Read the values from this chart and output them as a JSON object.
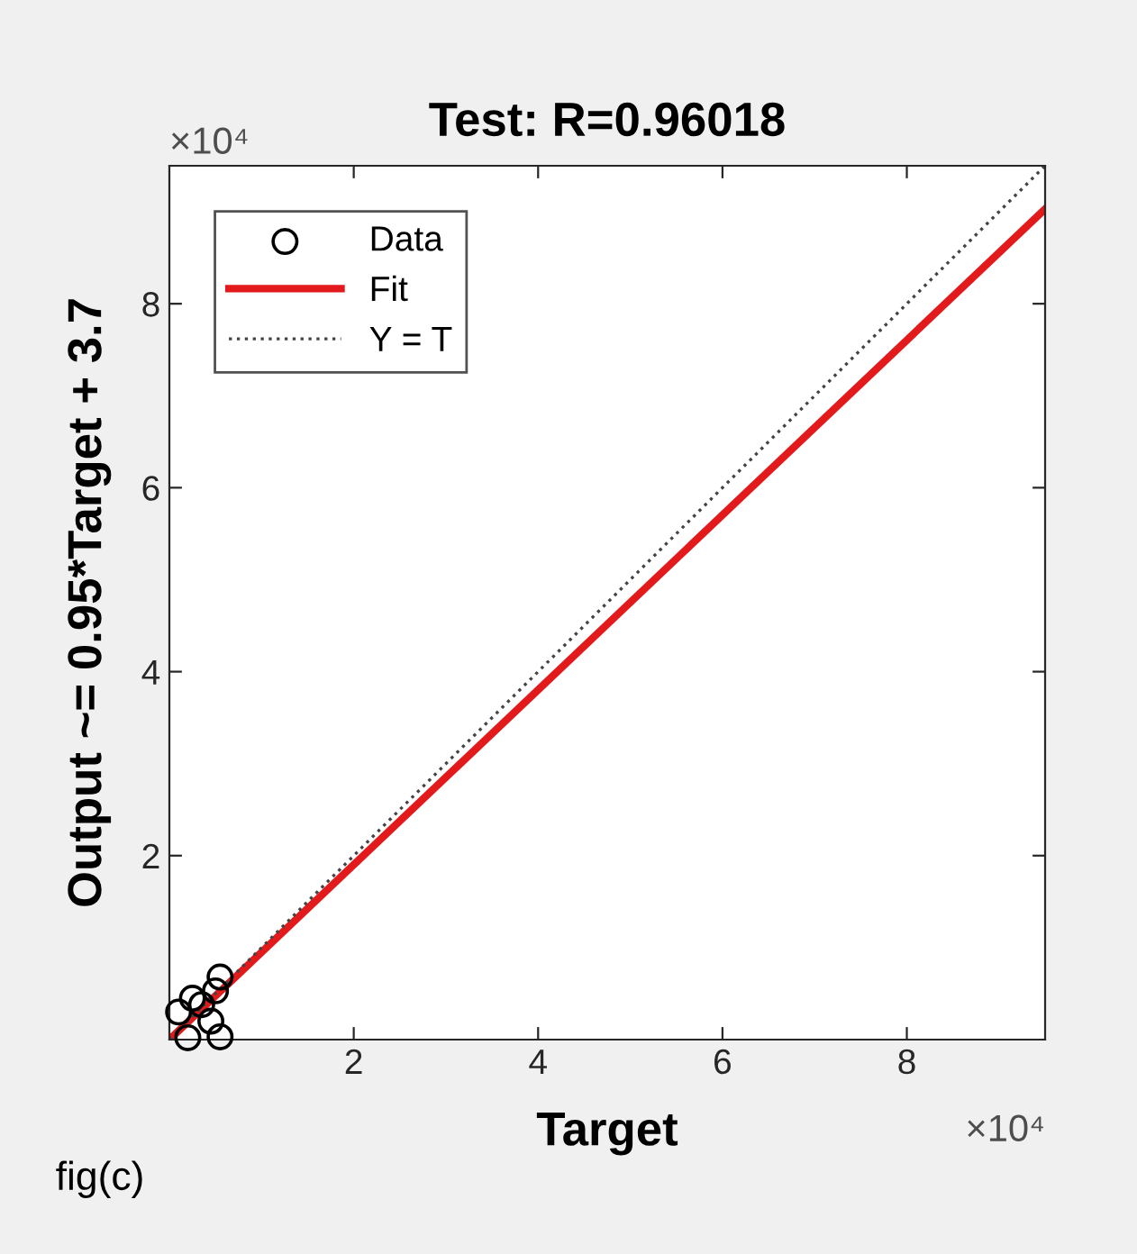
{
  "chart_data": {
    "type": "scatter",
    "title": "Test: R=0.96018",
    "xlabel": "Target",
    "ylabel": "Output ~= 0.95*Target + 3.7",
    "xlim": [
      0,
      9.5
    ],
    "ylim": [
      0,
      9.5
    ],
    "xticks": [
      2,
      4,
      6,
      8
    ],
    "yticks": [
      2,
      4,
      6,
      8
    ],
    "grid": false,
    "legend": "top left",
    "series": [
      {
        "name": "Data",
        "marker": "circle",
        "color": "#000000",
        "x": [
          0.1,
          0.25,
          0.35,
          0.5,
          0.55,
          0.55,
          0.2,
          0.45
        ],
        "values": [
          0.3,
          0.45,
          0.38,
          0.53,
          0.68,
          0.03,
          0.02,
          0.2
        ]
      },
      {
        "name": "Fit",
        "type": "line",
        "color": "#e31a1c",
        "line_style": "solid",
        "marker": "none",
        "x": [
          0,
          9.5
        ],
        "values": [
          0,
          9.03
        ]
      },
      {
        "name": "Y = T",
        "type": "line",
        "color": "#444444",
        "line_style": "dotted",
        "marker": "none",
        "x": [
          0,
          9.5
        ],
        "values": [
          0,
          9.5
        ]
      }
    ],
    "annotations": [
      "×10⁴",
      "×10⁴",
      "fig(c)"
    ]
  }
}
